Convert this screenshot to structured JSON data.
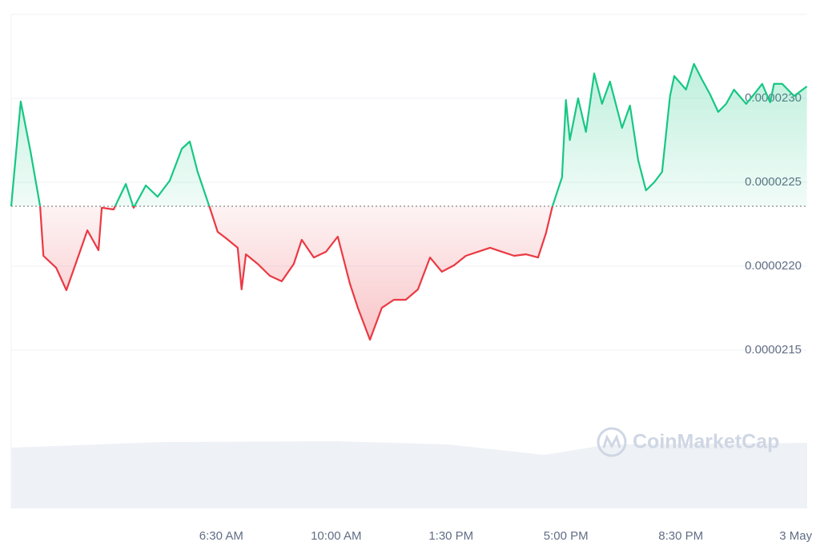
{
  "chart_data": {
    "type": "line",
    "watermark": "CoinMarketCap",
    "x": [
      0.1,
      0.39,
      0.69,
      0.98,
      1.08,
      1.47,
      1.78,
      2.15,
      2.42,
      2.76,
      2.86,
      3.22,
      3.59,
      3.83,
      4.2,
      4.56,
      4.93,
      5.3,
      5.54,
      5.78,
      6.15,
      6.39,
      6.64,
      7.0,
      7.12,
      7.25,
      7.61,
      7.98,
      8.34,
      8.71,
      8.95,
      9.32,
      9.69,
      10.05,
      10.42,
      10.66,
      11.03,
      11.39,
      11.76,
      12.12,
      12.49,
      12.86,
      13.22,
      13.59,
      13.95,
      14.32,
      14.69,
      15.05,
      15.42,
      15.78,
      16.15,
      16.39,
      16.59,
      16.88,
      17.0,
      17.12,
      17.37,
      17.61,
      17.86,
      18.1,
      18.34,
      18.71,
      18.95,
      19.2,
      19.44,
      19.69,
      19.93,
      20.17,
      20.3,
      20.66,
      20.9,
      21.15,
      21.39,
      21.64,
      21.88,
      22.12,
      22.49,
      22.73,
      22.98,
      23.22,
      23.34,
      23.59,
      23.95,
      24.34
    ],
    "values": [
      2.2357e-05,
      2.2981e-05,
      2.2681e-05,
      2.2357e-05,
      2.2062e-05,
      2.199e-05,
      2.1857e-05,
      2.2062e-05,
      2.2214e-05,
      2.2095e-05,
      2.2348e-05,
      2.2338e-05,
      2.249e-05,
      2.2348e-05,
      2.2481e-05,
      2.2414e-05,
      2.251e-05,
      2.27e-05,
      2.2743e-05,
      2.2562e-05,
      2.2348e-05,
      2.2205e-05,
      2.2167e-05,
      2.211e-05,
      2.1862e-05,
      2.2071e-05,
      2.2014e-05,
      2.1943e-05,
      2.191e-05,
      2.2014e-05,
      2.2157e-05,
      2.2052e-05,
      2.2086e-05,
      2.2176e-05,
      2.1895e-05,
      2.1752e-05,
      2.1562e-05,
      2.1752e-05,
      2.18e-05,
      2.18e-05,
      2.1862e-05,
      2.2052e-05,
      2.1967e-05,
      2.2005e-05,
      2.2062e-05,
      2.2086e-05,
      2.211e-05,
      2.2086e-05,
      2.2062e-05,
      2.2071e-05,
      2.2052e-05,
      2.2195e-05,
      2.2357e-05,
      2.2529e-05,
      2.299e-05,
      2.2752e-05,
      2.3e-05,
      2.28e-05,
      2.3148e-05,
      2.2967e-05,
      2.31e-05,
      2.2824e-05,
      2.2957e-05,
      2.2633e-05,
      2.2452e-05,
      2.25e-05,
      2.2562e-05,
      2.3014e-05,
      2.3133e-05,
      2.3052e-05,
      2.3205e-05,
      2.311e-05,
      2.3024e-05,
      2.2919e-05,
      2.2967e-05,
      2.3052e-05,
      2.2967e-05,
      2.3024e-05,
      2.3086e-05,
      2.2976e-05,
      2.3086e-05,
      2.3086e-05,
      2.3014e-05,
      2.3071e-05
    ],
    "color_up": "#16c784",
    "color_down": "#ea3943",
    "xlim": [
      0.1,
      24.35
    ],
    "ylim": [
      2.1e-05,
      2.35e-05
    ],
    "xticks": [
      {
        "value": 6.5,
        "label": "6:30 AM"
      },
      {
        "value": 10,
        "label": "10:00 AM"
      },
      {
        "value": 13.5,
        "label": "1:30 PM"
      },
      {
        "value": 17,
        "label": "5:00 PM"
      },
      {
        "value": 20.5,
        "label": "8:30 PM"
      },
      {
        "value": 24,
        "label": "3 May"
      }
    ],
    "yticks": [
      {
        "value": 2.15e-05,
        "label": "0.0000215"
      },
      {
        "value": 2.2e-05,
        "label": "0.0000220"
      },
      {
        "value": 2.25e-05,
        "label": "0.0000225"
      },
      {
        "value": 2.3e-05,
        "label": "0.0000230"
      }
    ],
    "grid": true
  }
}
